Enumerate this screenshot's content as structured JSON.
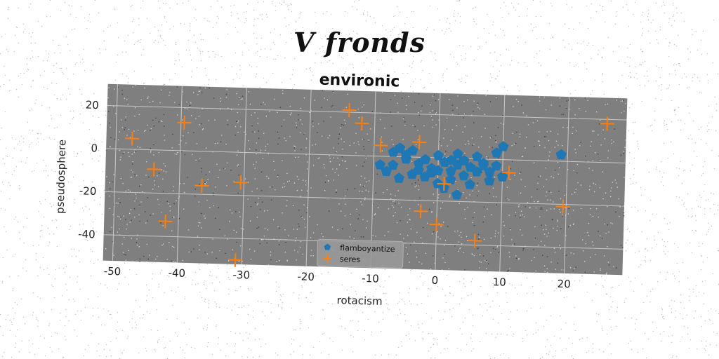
{
  "suptitle": "V fronds",
  "chart_data": {
    "type": "scatter",
    "title": "environic",
    "xlabel": "rotacism",
    "ylabel": "pseudosphere",
    "xlim": [
      -51.5,
      29
    ],
    "ylim": [
      -52,
      30
    ],
    "xticks": [
      -50,
      -40,
      -30,
      -20,
      -10,
      0,
      10,
      20
    ],
    "yticks": [
      -40,
      -20,
      0,
      20
    ],
    "grid": true,
    "legend_position": "lower center",
    "background": "#7f7f7f",
    "series": [
      {
        "name": "flamboyantize",
        "marker": "pentagon",
        "color": "#1f77b4",
        "points": [
          [
            -9,
            -4
          ],
          [
            -8,
            -7
          ],
          [
            -7,
            2
          ],
          [
            -6,
            4
          ],
          [
            -5,
            -1
          ],
          [
            -4,
            3
          ],
          [
            -3,
            -3
          ],
          [
            -2,
            -1
          ],
          [
            -1,
            -5
          ],
          [
            0,
            1
          ],
          [
            1,
            -2
          ],
          [
            2,
            -6
          ],
          [
            3,
            -3
          ],
          [
            4,
            -1
          ],
          [
            5,
            -4
          ],
          [
            6,
            1
          ],
          [
            7,
            -2
          ],
          [
            8,
            -6
          ],
          [
            9,
            -3
          ],
          [
            10,
            -8
          ],
          [
            -6,
            -10
          ],
          [
            -4,
            -8
          ],
          [
            -2,
            -9
          ],
          [
            0,
            -12
          ],
          [
            2,
            -10
          ],
          [
            4,
            -8
          ],
          [
            6,
            -6
          ],
          [
            8,
            -10
          ],
          [
            -5,
            1
          ],
          [
            3,
            2
          ],
          [
            9,
            3
          ],
          [
            -1,
            -7
          ],
          [
            1,
            -14
          ],
          [
            3,
            -17
          ],
          [
            5,
            -12
          ],
          [
            7,
            -3
          ],
          [
            -3,
            -6
          ],
          [
            -7,
            -4
          ],
          [
            0,
            -6
          ],
          [
            2,
            -1
          ],
          [
            19,
            3
          ],
          [
            10,
            6
          ]
        ]
      },
      {
        "name": "seres",
        "marker": "plus",
        "color": "#ff7f0e",
        "points": [
          [
            -47.5,
            5
          ],
          [
            -39.5,
            13
          ],
          [
            -44,
            -9
          ],
          [
            -36.5,
            -16
          ],
          [
            -30.5,
            -14
          ],
          [
            -42,
            -33
          ],
          [
            -31,
            -50
          ],
          [
            -14,
            21
          ],
          [
            -12,
            15
          ],
          [
            -9,
            5
          ],
          [
            -3,
            7
          ],
          [
            -2.5,
            -25
          ],
          [
            0,
            -31
          ],
          [
            1,
            -12
          ],
          [
            6,
            -38
          ],
          [
            11,
            -6
          ],
          [
            19.5,
            -21
          ],
          [
            26,
            18
          ]
        ]
      }
    ]
  }
}
